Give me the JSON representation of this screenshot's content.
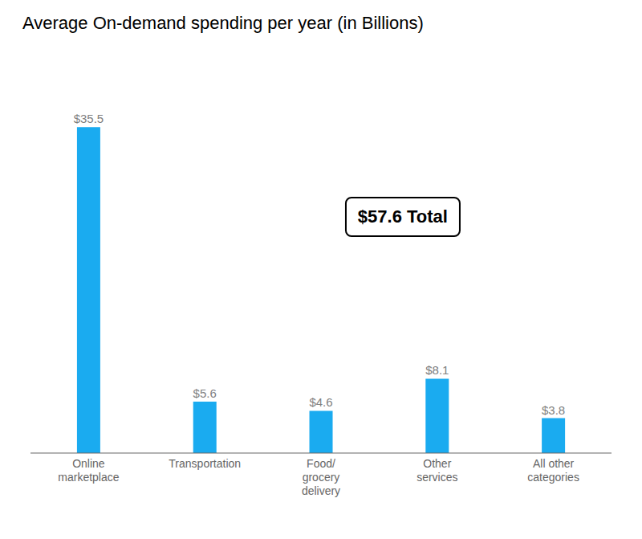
{
  "chart_data": {
    "type": "bar",
    "title": "Average On-demand spending per year (in Billions)",
    "categories": [
      "Online\nmarketplace",
      "Transportation",
      "Food/\ngrocery\ndelivery",
      "Other\nservices",
      "All other\ncategories"
    ],
    "values": [
      35.5,
      5.6,
      4.6,
      8.1,
      3.8
    ],
    "value_labels": [
      "$35.5",
      "$5.6",
      "$4.6",
      "$8.1",
      "$3.8"
    ],
    "color": "#1AABF0",
    "ylim": [
      0,
      42
    ],
    "data_labels": true,
    "tick_labels": "x",
    "grid": false,
    "annotations": [
      "$57.6 Total"
    ]
  }
}
